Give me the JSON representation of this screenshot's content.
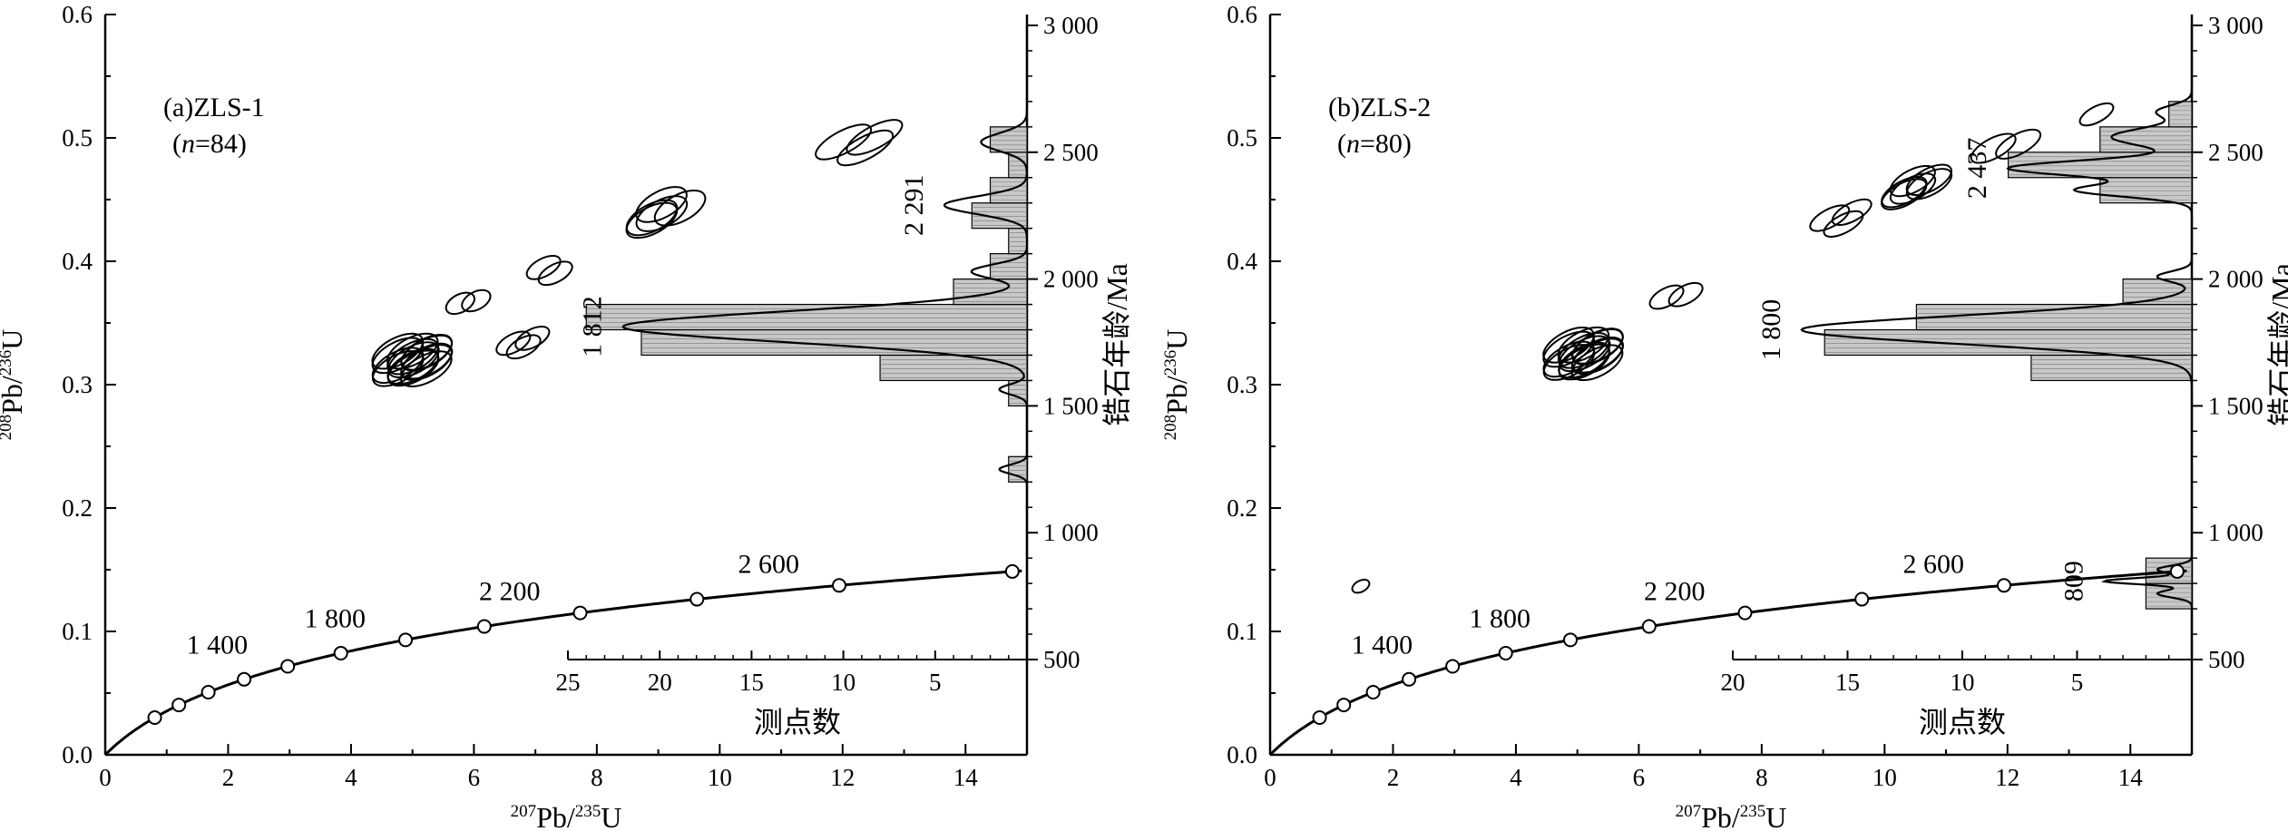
{
  "chart_data": [
    {
      "type": "scatter",
      "panel_label": "(a)ZLS-1",
      "n_text": "n=84",
      "n_italic": "n",
      "n_value": "=84",
      "xlabel": {
        "mass": "207",
        "el": "Pb/",
        "mass2": "235",
        "el2": "U"
      },
      "ylabel": {
        "mass": "208",
        "el": "Pb/",
        "mass2": "236",
        "el2": "U"
      },
      "right_axis_label": "锆石年龄/Ma",
      "hist_xlabel": "测点数",
      "xlim": [
        0,
        15
      ],
      "ylim": [
        0,
        0.6
      ],
      "x_ticks": [
        "0",
        "2",
        "4",
        "6",
        "8",
        "10",
        "12",
        "14"
      ],
      "y_ticks": [
        "0.0",
        "0.1",
        "0.2",
        "0.3",
        "0.4",
        "0.5",
        "0.6"
      ],
      "age_ticks": [
        "500",
        "1 000",
        "1 500",
        "2 000",
        "2 500",
        "3 000"
      ],
      "age_range": [
        500,
        3000
      ],
      "hist_ticks": [
        "25",
        "20",
        "15",
        "10",
        "5"
      ],
      "hist_max": 25,
      "concordia_age_labels": [
        {
          "text": "1 400",
          "age": 1400
        },
        {
          "text": "1 800",
          "age": 1800
        },
        {
          "text": "2 200",
          "age": 2200
        },
        {
          "text": "2 600",
          "age": 2600
        }
      ],
      "peak_labels": [
        {
          "text": "1 812",
          "age": 1812
        },
        {
          "text": "2 291",
          "age": 2291
        }
      ],
      "ellipses": [
        {
          "x": 5.0,
          "y": 0.32,
          "rx": 0.45,
          "ry": 0.012,
          "n": 14
        },
        {
          "x": 6.8,
          "y": 0.335,
          "rx": 0.3,
          "ry": 0.008,
          "n": 3
        },
        {
          "x": 5.9,
          "y": 0.37,
          "rx": 0.25,
          "ry": 0.008,
          "n": 2
        },
        {
          "x": 7.3,
          "y": 0.395,
          "rx": 0.3,
          "ry": 0.008,
          "n": 2
        },
        {
          "x": 9.1,
          "y": 0.44,
          "rx": 0.45,
          "ry": 0.012,
          "n": 5
        },
        {
          "x": 12.3,
          "y": 0.495,
          "rx": 0.5,
          "ry": 0.01,
          "n": 3
        }
      ],
      "histogram": [
        {
          "age": 1250,
          "count": 1
        },
        {
          "age": 1550,
          "count": 1
        },
        {
          "age": 1650,
          "count": 8
        },
        {
          "age": 1750,
          "count": 21
        },
        {
          "age": 1850,
          "count": 24
        },
        {
          "age": 1950,
          "count": 4
        },
        {
          "age": 2050,
          "count": 2
        },
        {
          "age": 2150,
          "count": 1
        },
        {
          "age": 2250,
          "count": 3
        },
        {
          "age": 2350,
          "count": 2
        },
        {
          "age": 2450,
          "count": 1
        },
        {
          "age": 2550,
          "count": 2
        }
      ],
      "kde_peaks": [
        {
          "age": 1250,
          "h": 1.5,
          "s": 18
        },
        {
          "age": 1565,
          "h": 1.5,
          "s": 20
        },
        {
          "age": 1812,
          "h": 22,
          "s": 60
        },
        {
          "age": 2030,
          "h": 3,
          "s": 28
        },
        {
          "age": 2291,
          "h": 4.5,
          "s": 35
        },
        {
          "age": 2540,
          "h": 2.5,
          "s": 35
        }
      ]
    },
    {
      "type": "scatter",
      "panel_label": "(b)ZLS-2",
      "n_text": "n=80",
      "n_italic": "n",
      "n_value": "=80",
      "xlabel": {
        "mass": "207",
        "el": "Pb/",
        "mass2": "235",
        "el2": "U"
      },
      "ylabel": {
        "mass": "208",
        "el": "Pb/",
        "mass2": "236",
        "el2": "U"
      },
      "right_axis_label": "锆石年龄/Ma",
      "hist_xlabel": "测点数",
      "xlim": [
        0,
        15
      ],
      "ylim": [
        0,
        0.6
      ],
      "x_ticks": [
        "0",
        "2",
        "4",
        "6",
        "8",
        "10",
        "12",
        "14"
      ],
      "y_ticks": [
        "0.0",
        "0.1",
        "0.2",
        "0.3",
        "0.4",
        "0.5",
        "0.6"
      ],
      "age_ticks": [
        "500",
        "1 000",
        "1 500",
        "2 000",
        "2 500",
        "3 000"
      ],
      "age_range": [
        500,
        3000
      ],
      "hist_ticks": [
        "20",
        "15",
        "10",
        "5"
      ],
      "hist_max": 20,
      "concordia_age_labels": [
        {
          "text": "1 400",
          "age": 1400
        },
        {
          "text": "1 800",
          "age": 1800
        },
        {
          "text": "2 200",
          "age": 2200
        },
        {
          "text": "2 600",
          "age": 2600
        }
      ],
      "peak_labels": [
        {
          "text": "809",
          "age": 809
        },
        {
          "text": "1 800",
          "age": 1800
        },
        {
          "text": "2 437",
          "age": 2437
        }
      ],
      "ellipses": [
        {
          "x": 5.1,
          "y": 0.325,
          "rx": 0.45,
          "ry": 0.012,
          "n": 14
        },
        {
          "x": 1.4,
          "y": 0.135,
          "rx": 0.15,
          "ry": 0.005,
          "n": 1
        },
        {
          "x": 6.6,
          "y": 0.375,
          "rx": 0.3,
          "ry": 0.008,
          "n": 2
        },
        {
          "x": 9.3,
          "y": 0.435,
          "rx": 0.35,
          "ry": 0.008,
          "n": 3
        },
        {
          "x": 10.5,
          "y": 0.46,
          "rx": 0.4,
          "ry": 0.01,
          "n": 6
        },
        {
          "x": 12.0,
          "y": 0.49,
          "rx": 0.4,
          "ry": 0.009,
          "n": 2
        },
        {
          "x": 13.5,
          "y": 0.515,
          "rx": 0.3,
          "ry": 0.007,
          "n": 1
        }
      ],
      "histogram": [
        {
          "age": 750,
          "count": 2
        },
        {
          "age": 850,
          "count": 2
        },
        {
          "age": 1950,
          "count": 1
        },
        {
          "age": 1650,
          "count": 7
        },
        {
          "age": 1750,
          "count": 16
        },
        {
          "age": 1850,
          "count": 12
        },
        {
          "age": 1950,
          "count": 3
        },
        {
          "age": 2350,
          "count": 4
        },
        {
          "age": 2450,
          "count": 8
        },
        {
          "age": 2550,
          "count": 4
        },
        {
          "age": 2650,
          "count": 1
        }
      ],
      "kde_peaks": [
        {
          "age": 760,
          "h": 1.5,
          "s": 15
        },
        {
          "age": 809,
          "h": 3.8,
          "s": 12
        },
        {
          "age": 855,
          "h": 1.5,
          "s": 15
        },
        {
          "age": 1800,
          "h": 17,
          "s": 55
        },
        {
          "age": 2010,
          "h": 1.5,
          "s": 20
        },
        {
          "age": 2350,
          "h": 5,
          "s": 25
        },
        {
          "age": 2437,
          "h": 8,
          "s": 30
        },
        {
          "age": 2560,
          "h": 3.5,
          "s": 35
        },
        {
          "age": 2660,
          "h": 1.5,
          "s": 25
        }
      ]
    }
  ]
}
